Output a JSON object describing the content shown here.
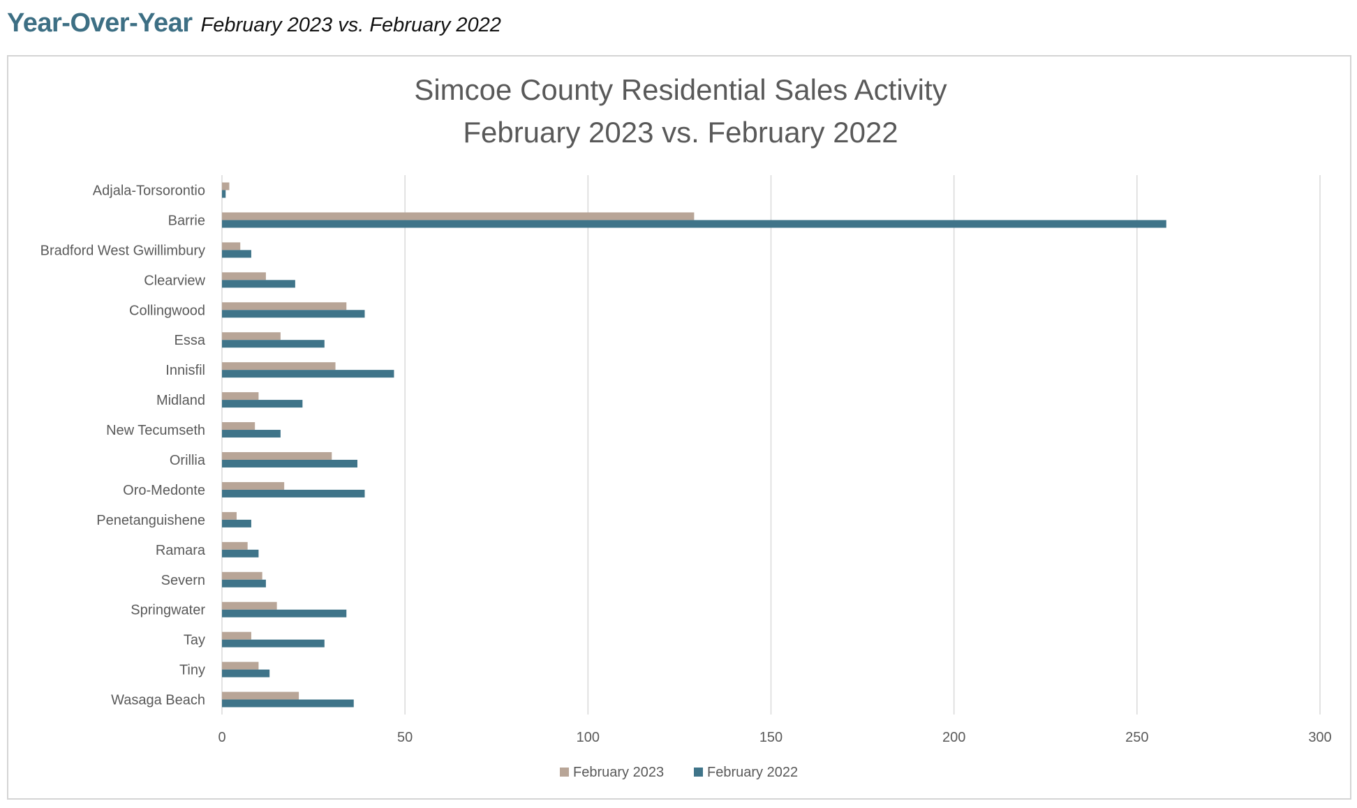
{
  "header": {
    "title": "Year-Over-Year",
    "subtitle": "February 2023 vs. February 2022"
  },
  "colors": {
    "header_title": "#3d6f84",
    "series_2023": "#b8a597",
    "series_2022": "#3f7489",
    "gridline": "#d9d9d9",
    "text": "#595959"
  },
  "chart_data": {
    "type": "bar",
    "orientation": "horizontal",
    "title_lines": [
      "Simcoe County Residential Sales Activity",
      "February 2023 vs. February 2022"
    ],
    "categories": [
      "Adjala-Torsorontio",
      "Barrie",
      "Bradford West Gwillimbury",
      "Clearview",
      "Collingwood",
      "Essa",
      "Innisfil",
      "Midland",
      "New Tecumseth",
      "Orillia",
      "Oro-Medonte",
      "Penetanguishene",
      "Ramara",
      "Severn",
      "Springwater",
      "Tay",
      "Tiny",
      "Wasaga Beach"
    ],
    "series": [
      {
        "name": "February 2023",
        "color": "#b8a597",
        "values": [
          2,
          129,
          5,
          12,
          34,
          16,
          31,
          10,
          9,
          30,
          17,
          4,
          7,
          11,
          15,
          8,
          10,
          21
        ]
      },
      {
        "name": "February 2022",
        "color": "#3f7489",
        "values": [
          1,
          258,
          8,
          20,
          39,
          28,
          47,
          22,
          16,
          37,
          39,
          8,
          10,
          12,
          34,
          28,
          13,
          36
        ]
      }
    ],
    "xlim": [
      0,
      300
    ],
    "x_ticks": [
      0,
      50,
      100,
      150,
      200,
      250,
      300
    ],
    "grid": true,
    "legend_position": "bottom"
  }
}
